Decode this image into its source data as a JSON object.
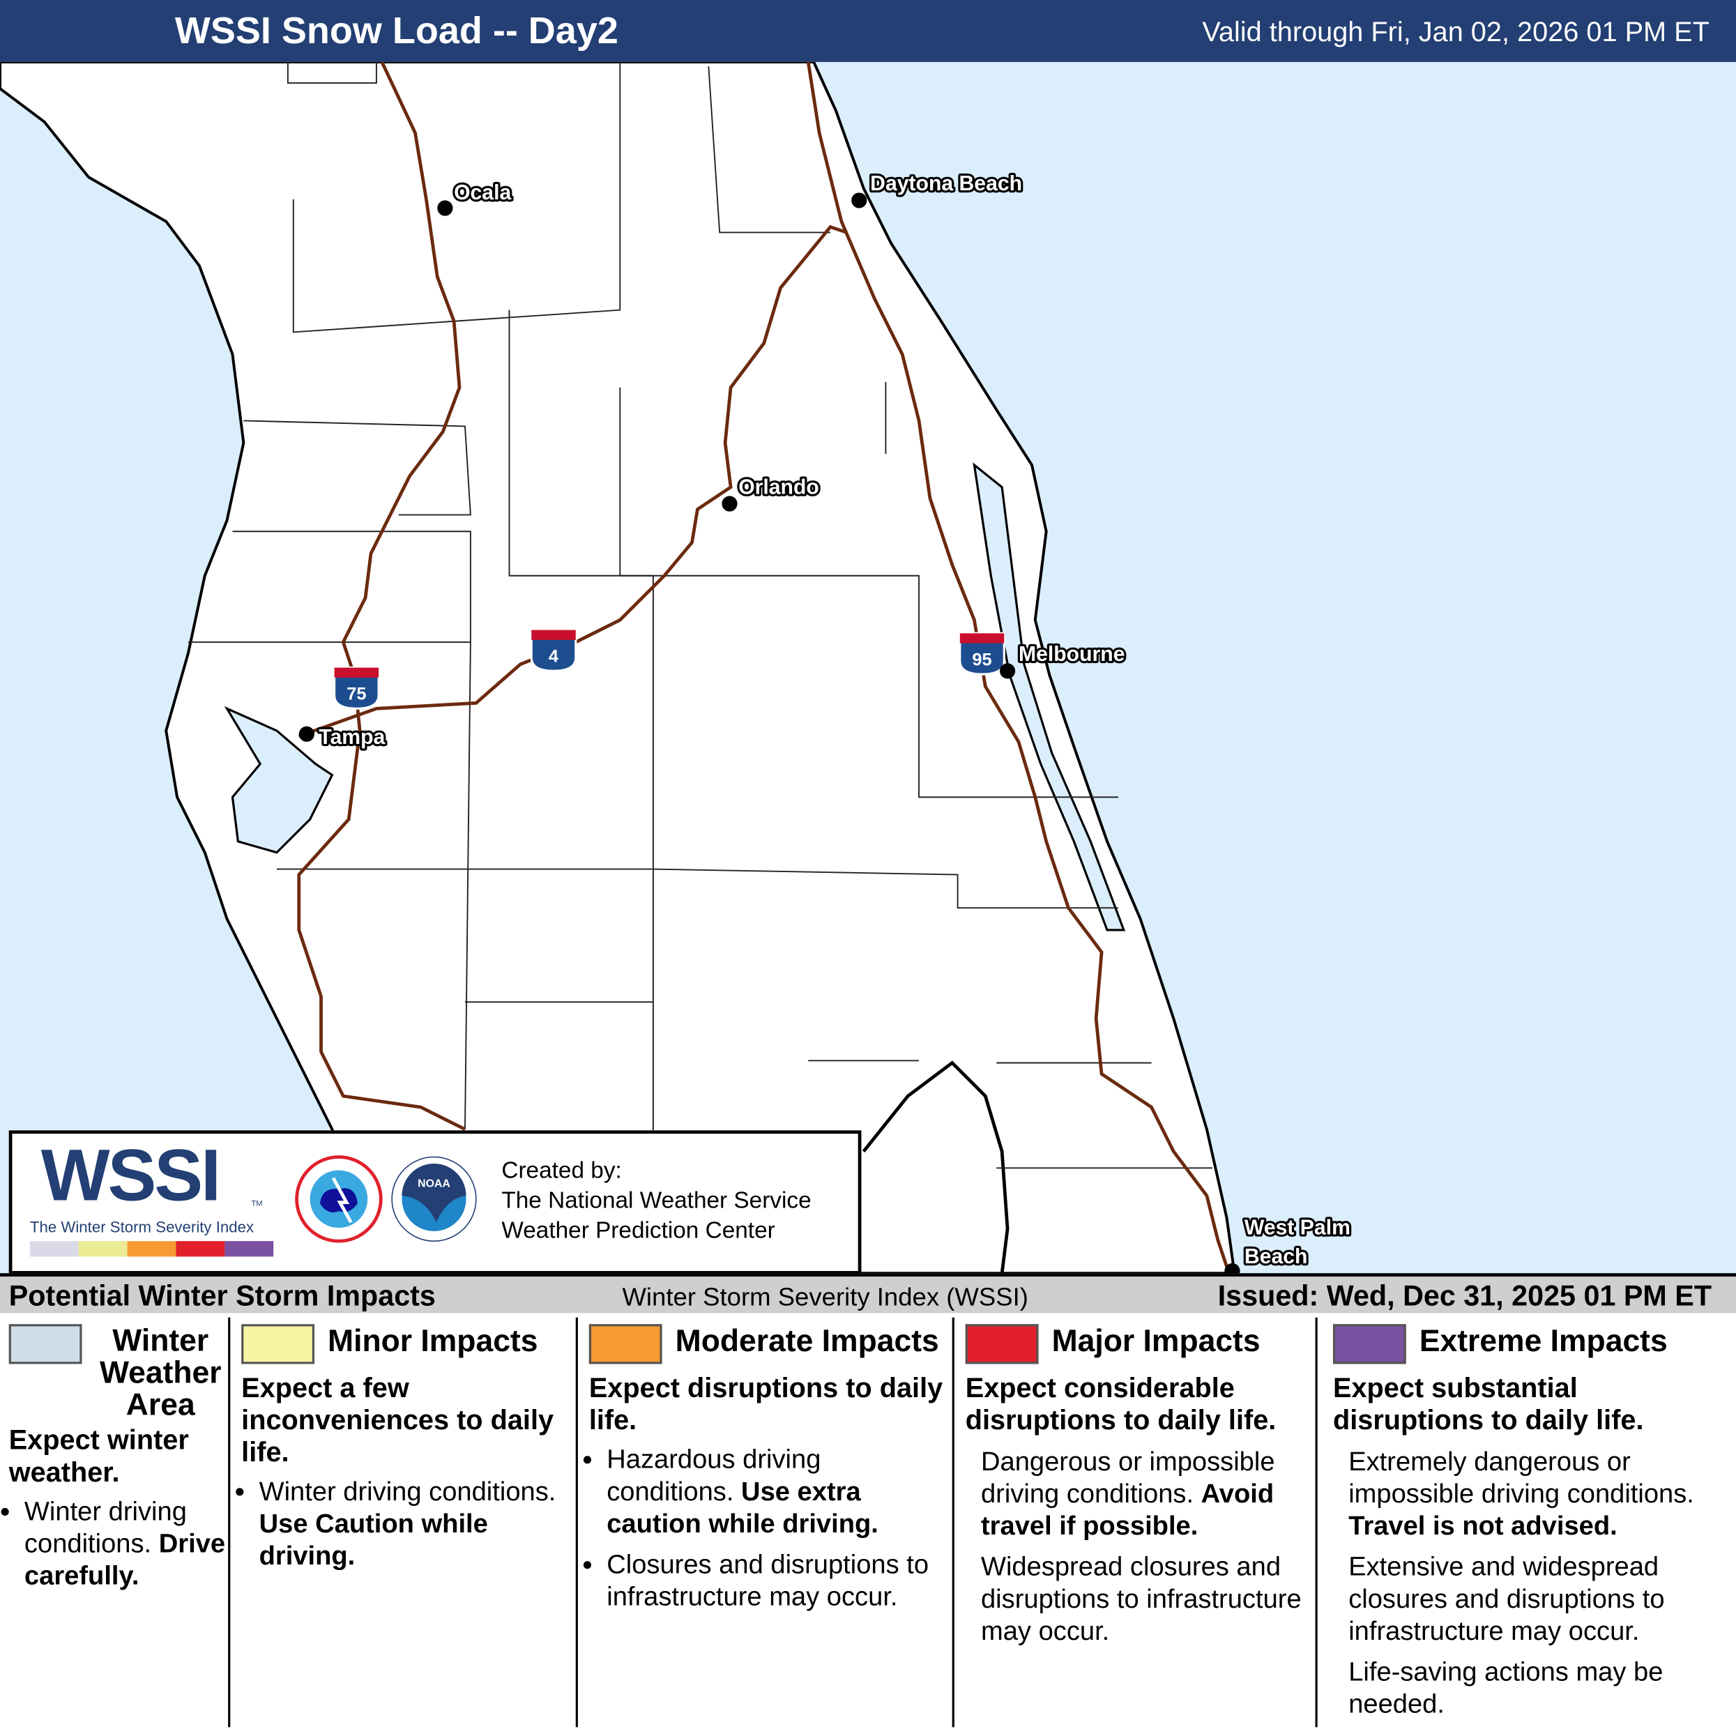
{
  "header": {
    "title": "WSSI Snow Load -- Day2",
    "valid": "Valid through Fri, Jan 02, 2026 01 PM ET"
  },
  "colors": {
    "header_bg": "#233f73",
    "water": "#dbeefc",
    "road": "#6b2a0e",
    "winter": "#d0dde6",
    "minor": "#f7f3a3",
    "moderate": "#f79a33",
    "major": "#e2202b",
    "extreme": "#7a50a0"
  },
  "map": {
    "cities": [
      "Ocala",
      "Daytona Beach",
      "Orlando",
      "Melbourne",
      "Tampa",
      "West Palm",
      "Beach"
    ],
    "interstates": [
      "75",
      "4",
      "95"
    ]
  },
  "logo": {
    "wssi": "WSSI",
    "tm": "TM",
    "subtitle": "The Winter Storm Severity Index",
    "nws": "NATIONAL WEATHER SERVICE",
    "noaa": "NOAA",
    "created_by": "Created by:",
    "line1": "The National Weather Service",
    "line2": "Weather Prediction Center"
  },
  "bar": {
    "left": "Potential Winter Storm Impacts",
    "center": "Winter Storm Severity Index (WSSI)",
    "right": "Issued: Wed, Dec 31, 2025 01 PM ET"
  },
  "legend": [
    {
      "title": "Winter Weather Area",
      "head": "Expect winter weather.",
      "bullets": [
        {
          "text": "Winter driving conditions.",
          "bold": "Drive carefully."
        }
      ]
    },
    {
      "title": "Minor Impacts",
      "head": "Expect a few inconveniences to daily life.",
      "bullets": [
        {
          "text": "Winter driving conditions.",
          "bold": "Use Caution while driving."
        }
      ]
    },
    {
      "title": "Moderate Impacts",
      "head": "Expect disruptions to daily life.",
      "bullets": [
        {
          "text": "Hazardous driving conditions.",
          "bold": "Use extra caution while driving."
        },
        {
          "text": "Closures and disruptions to infrastructure may occur.",
          "bold": ""
        }
      ]
    },
    {
      "title": "Major Impacts",
      "head": "Expect considerable disruptions to daily life.",
      "paras": [
        {
          "text": "Dangerous or impossible driving conditions.",
          "bold": "Avoid travel if possible."
        },
        {
          "text": "Widespread closures and disruptions to infrastructure may occur.",
          "bold": ""
        }
      ]
    },
    {
      "title": "Extreme Impacts",
      "head": "Expect substantial disruptions to daily life.",
      "paras": [
        {
          "text": "Extremely dangerous or impossible driving conditions.",
          "bold": "Travel is not advised."
        },
        {
          "text": "Extensive and widespread closures and disruptions to infrastructure may occur.",
          "bold": ""
        },
        {
          "text": "Life-saving actions may be needed.",
          "bold": ""
        }
      ]
    }
  ]
}
